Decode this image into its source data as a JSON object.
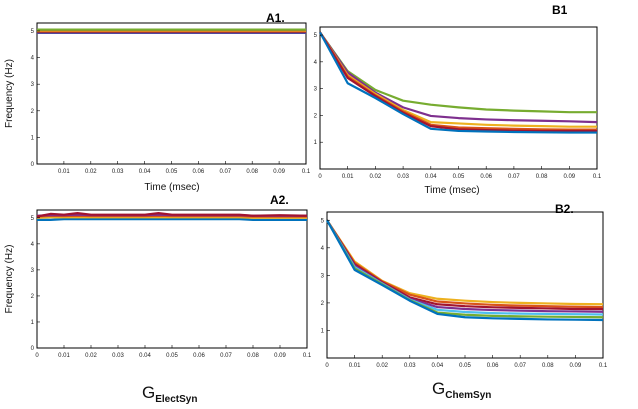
{
  "figure_labels": {
    "a_group_label_main": "G",
    "a_group_label_sub": "ElectSyn",
    "b_group_label_main": "G",
    "b_group_label_sub": "ChemSyn"
  },
  "chart_data": [
    {
      "id": "A1",
      "panel_label": "A1.",
      "type": "line",
      "xlabel": "Time (msec)",
      "ylabel": "Frequency (Hz)",
      "xlim": [
        0,
        0.1
      ],
      "ylim": [
        0,
        5.3
      ],
      "x_ticks": [
        "0.01",
        "0.02",
        "0.03",
        "0.04",
        "0.05",
        "0.06",
        "0.07",
        "0.08",
        "0.09",
        "0.1"
      ],
      "y_ticks": [
        "0",
        "1",
        "2",
        "3",
        "4",
        "5"
      ],
      "x": [
        0,
        0.02,
        0.04,
        0.06,
        0.08,
        0.1
      ],
      "series": [
        {
          "color": "#7e2f8e",
          "values": [
            4.93,
            4.93,
            4.93,
            4.93,
            4.93,
            4.93
          ]
        },
        {
          "color": "#0072bd",
          "values": [
            4.95,
            4.95,
            4.95,
            4.95,
            4.95,
            4.95
          ]
        },
        {
          "color": "#a2142f",
          "values": [
            4.97,
            4.97,
            4.97,
            4.97,
            4.97,
            4.97
          ]
        },
        {
          "color": "#edb120",
          "values": [
            5.0,
            5.0,
            5.0,
            5.0,
            5.0,
            5.0
          ]
        },
        {
          "color": "#d95319",
          "values": [
            5.02,
            5.02,
            5.02,
            5.02,
            5.02,
            5.02
          ]
        },
        {
          "color": "#77ac30",
          "values": [
            5.05,
            5.05,
            5.05,
            5.05,
            5.05,
            5.05
          ]
        }
      ]
    },
    {
      "id": "B1",
      "panel_label": "B1",
      "type": "line",
      "xlabel": "Time (msec)",
      "ylabel": "",
      "xlim": [
        0,
        0.1
      ],
      "ylim": [
        0,
        5.3
      ],
      "x_ticks": [
        "0",
        "0.01",
        "0.02",
        "0.03",
        "0.04",
        "0.05",
        "0.06",
        "0.07",
        "0.08",
        "0.09",
        "0.1"
      ],
      "y_ticks": [
        "1",
        "2",
        "3",
        "4",
        "5"
      ],
      "x": [
        0,
        0.01,
        0.02,
        0.03,
        0.04,
        0.05,
        0.06,
        0.07,
        0.08,
        0.09,
        0.1
      ],
      "series": [
        {
          "color": "#77ac30",
          "values": [
            5.1,
            3.65,
            2.95,
            2.55,
            2.4,
            2.3,
            2.22,
            2.18,
            2.15,
            2.12,
            2.12
          ]
        },
        {
          "color": "#7e2f8e",
          "values": [
            5.1,
            3.6,
            2.85,
            2.3,
            1.98,
            1.9,
            1.85,
            1.82,
            1.8,
            1.78,
            1.75
          ]
        },
        {
          "color": "#edb120",
          "values": [
            5.1,
            3.5,
            2.8,
            2.2,
            1.75,
            1.7,
            1.65,
            1.62,
            1.6,
            1.58,
            1.58
          ]
        },
        {
          "color": "#d95319",
          "values": [
            5.1,
            3.45,
            2.75,
            2.15,
            1.65,
            1.55,
            1.52,
            1.5,
            1.48,
            1.47,
            1.47
          ]
        },
        {
          "color": "#a2142f",
          "values": [
            5.1,
            3.4,
            2.72,
            2.1,
            1.6,
            1.48,
            1.45,
            1.43,
            1.42,
            1.42,
            1.42
          ]
        },
        {
          "color": "#0072bd",
          "values": [
            5.1,
            3.2,
            2.65,
            2.05,
            1.5,
            1.42,
            1.4,
            1.38,
            1.37,
            1.36,
            1.36
          ]
        }
      ]
    },
    {
      "id": "A2",
      "panel_label": "A2.",
      "type": "line",
      "xlabel": "",
      "ylabel": "Frequency (Hz)",
      "xlim": [
        0,
        0.1
      ],
      "ylim": [
        0,
        5.3
      ],
      "x_ticks": [
        "0",
        "0.01",
        "0.02",
        "0.03",
        "0.04",
        "0.05",
        "0.06",
        "0.07",
        "0.08",
        "0.09",
        "0.1"
      ],
      "y_ticks": [
        "0",
        "1",
        "2",
        "3",
        "4",
        "5"
      ],
      "x": [
        0,
        0.005,
        0.01,
        0.015,
        0.02,
        0.03,
        0.04,
        0.045,
        0.05,
        0.06,
        0.07,
        0.075,
        0.08,
        0.09,
        0.1
      ],
      "series": [
        {
          "color": "#0072bd",
          "values": [
            4.92,
            4.92,
            4.95,
            4.95,
            4.95,
            4.95,
            4.95,
            4.95,
            4.95,
            4.95,
            4.95,
            4.95,
            4.92,
            4.92,
            4.92
          ]
        },
        {
          "color": "#edb120",
          "values": [
            5.0,
            5.02,
            5.02,
            5.02,
            5.02,
            5.02,
            5.02,
            5.02,
            5.02,
            5.02,
            5.02,
            5.02,
            5.0,
            5.0,
            5.0
          ]
        },
        {
          "color": "#d95319",
          "values": [
            5.05,
            5.08,
            5.07,
            5.08,
            5.07,
            5.07,
            5.07,
            5.08,
            5.07,
            5.07,
            5.07,
            5.07,
            5.05,
            5.05,
            5.05
          ]
        },
        {
          "color": "#7e2f8e",
          "values": [
            5.08,
            5.1,
            5.1,
            5.12,
            5.1,
            5.1,
            5.1,
            5.12,
            5.1,
            5.1,
            5.1,
            5.1,
            5.08,
            5.08,
            5.08
          ]
        },
        {
          "color": "#a2142f",
          "values": [
            5.05,
            5.15,
            5.12,
            5.18,
            5.12,
            5.12,
            5.12,
            5.18,
            5.12,
            5.12,
            5.12,
            5.12,
            5.08,
            5.1,
            5.08
          ]
        }
      ]
    },
    {
      "id": "B2",
      "panel_label": "B2.",
      "type": "line",
      "xlabel": "",
      "ylabel": "",
      "xlim": [
        0,
        0.1
      ],
      "ylim": [
        0,
        5.3
      ],
      "x_ticks": [
        "0",
        "0.01",
        "0.02",
        "0.03",
        "0.04",
        "0.05",
        "0.06",
        "0.07",
        "0.08",
        "0.09",
        "0.1"
      ],
      "y_ticks": [
        "1",
        "2",
        "3",
        "4",
        "5"
      ],
      "x": [
        0,
        0.01,
        0.02,
        0.03,
        0.04,
        0.05,
        0.06,
        0.07,
        0.08,
        0.09,
        0.1
      ],
      "series": [
        {
          "color": "#edb120",
          "values": [
            5.0,
            3.5,
            2.8,
            2.35,
            2.15,
            2.08,
            2.03,
            2.0,
            1.98,
            1.96,
            1.95
          ]
        },
        {
          "color": "#d95319",
          "values": [
            5.0,
            3.45,
            2.78,
            2.3,
            2.05,
            1.98,
            1.93,
            1.9,
            1.88,
            1.86,
            1.85
          ]
        },
        {
          "color": "#a2142f",
          "values": [
            5.0,
            3.4,
            2.75,
            2.2,
            1.95,
            1.88,
            1.84,
            1.82,
            1.8,
            1.78,
            1.78
          ]
        },
        {
          "color": "#7e2f8e",
          "values": [
            5.0,
            3.35,
            2.72,
            2.15,
            1.85,
            1.78,
            1.74,
            1.72,
            1.7,
            1.69,
            1.68
          ]
        },
        {
          "color": "#4dbeee",
          "values": [
            5.0,
            3.3,
            2.7,
            2.12,
            1.75,
            1.67,
            1.63,
            1.61,
            1.6,
            1.59,
            1.58
          ]
        },
        {
          "color": "#77ac30",
          "values": [
            5.0,
            3.25,
            2.68,
            2.1,
            1.65,
            1.57,
            1.53,
            1.51,
            1.5,
            1.49,
            1.48
          ]
        },
        {
          "color": "#0072bd",
          "values": [
            5.0,
            3.2,
            2.65,
            2.08,
            1.6,
            1.48,
            1.44,
            1.42,
            1.4,
            1.39,
            1.38
          ]
        }
      ]
    }
  ]
}
